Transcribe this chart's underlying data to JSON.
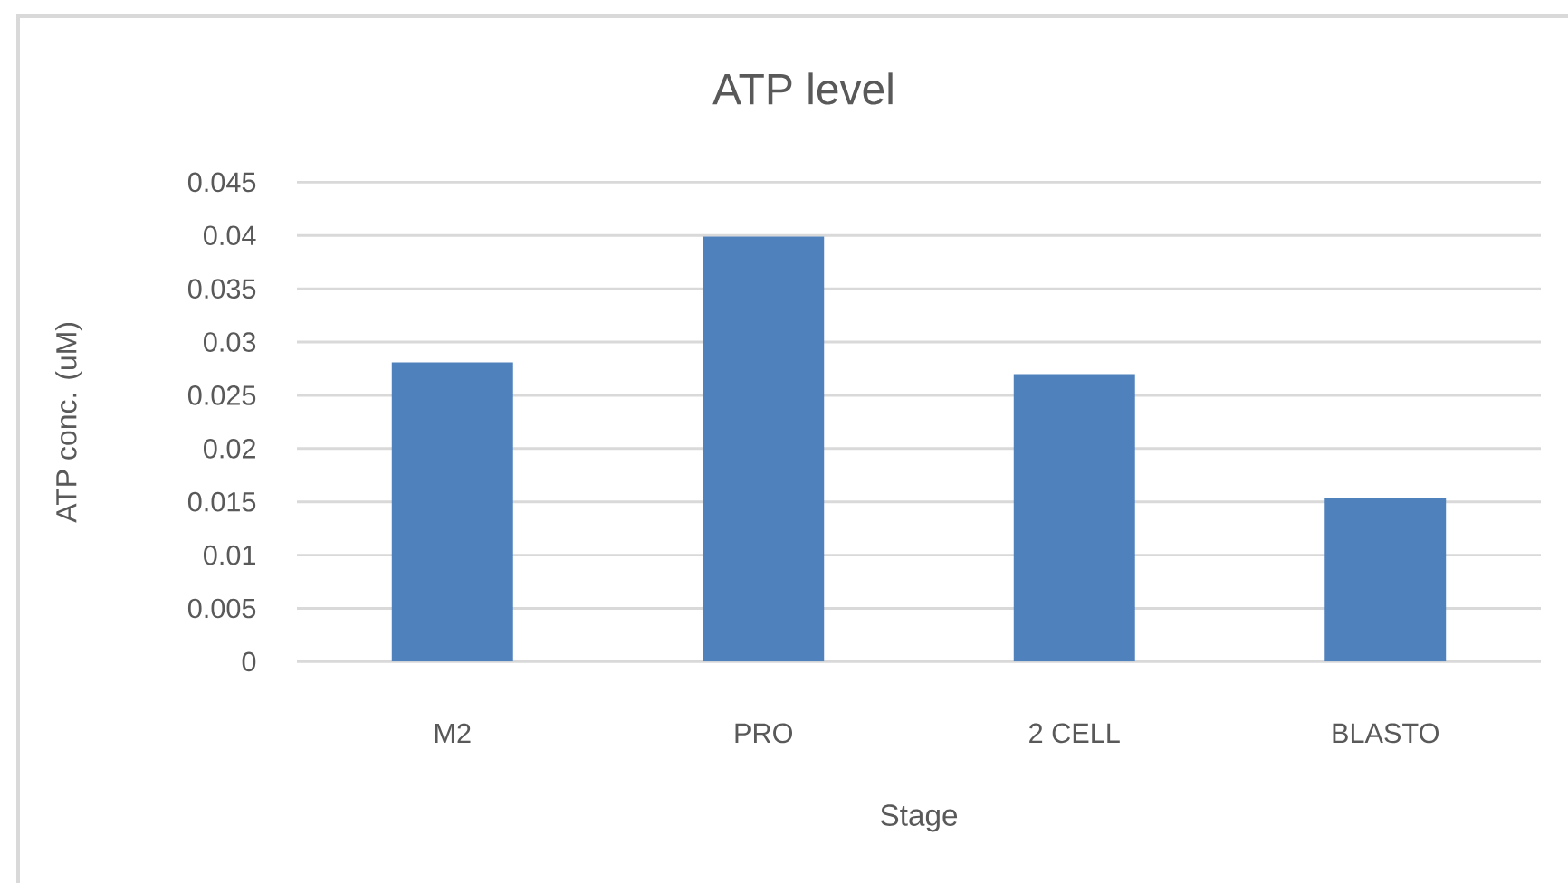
{
  "chart_data": {
    "type": "bar",
    "title": "ATP level",
    "xlabel": "Stage",
    "ylabel": "ATP conc. (uM)",
    "categories": [
      "M2",
      "PRO",
      "2 CELL",
      "BLASTO"
    ],
    "values": [
      0.0281,
      0.0399,
      0.027,
      0.0154
    ],
    "color": "#4f81bd",
    "ylim": [
      0,
      0.045
    ],
    "yticks": [
      0,
      0.005,
      0.01,
      0.015,
      0.02,
      0.025,
      0.03,
      0.035,
      0.04,
      0.045
    ],
    "grid": "y"
  }
}
